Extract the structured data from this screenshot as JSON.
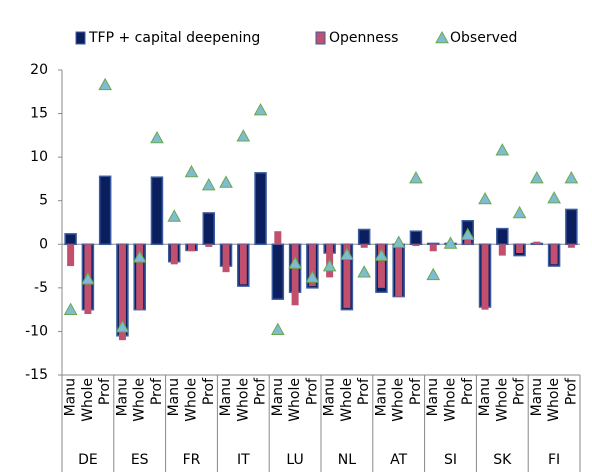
{
  "chart_data": {
    "type": "bar",
    "categories": [
      "Manu",
      "Whole",
      "Prof",
      "Manu",
      "Whole",
      "Prof",
      "Manu",
      "Whole",
      "Prof",
      "Manu",
      "Whole",
      "Prof",
      "Manu",
      "Whole",
      "Prof",
      "Manu",
      "Whole",
      "Prof",
      "Manu",
      "Whole",
      "Prof",
      "Manu",
      "Whole",
      "Prof",
      "Manu",
      "Whole",
      "Prof",
      "Manu",
      "Whole",
      "Prof"
    ],
    "groups": [
      "DE",
      "ES",
      "FR",
      "IT",
      "LU",
      "NL",
      "AT",
      "SI",
      "SK",
      "FI"
    ],
    "series": [
      {
        "name": "TFP + capital deepening",
        "color": "#0b1f5e",
        "mark": "bar",
        "values": [
          1.2,
          -7.5,
          7.8,
          -10.5,
          -7.5,
          7.7,
          -2,
          -0.7,
          3.6,
          -2.5,
          -4.8,
          8.2,
          -6.3,
          -5.5,
          -5,
          -1,
          -7.5,
          1.7,
          -5.5,
          -6,
          1.5,
          0.1,
          0.1,
          2.7,
          -7.2,
          1.8,
          -1.3,
          0.1,
          -2.5,
          4
        ]
      },
      {
        "name": "Openness",
        "color": "#c0506e",
        "mark": "bar",
        "values": [
          -2.5,
          -8,
          0,
          -11,
          -7.5,
          0,
          -2.3,
          -0.8,
          -0.3,
          -3.2,
          -4.6,
          0,
          1.5,
          -7,
          -4.8,
          -3.8,
          -7.3,
          -0.4,
          -5,
          -6,
          -0.2,
          -0.8,
          -0.4,
          0.5,
          -7.5,
          -1.3,
          -1,
          0.3,
          -2.3,
          -0.4
        ]
      },
      {
        "name": "Observed",
        "color": "#7fbcd2",
        "mark": "triangle",
        "values": [
          -7.5,
          -4,
          18.3,
          -9.5,
          -1.5,
          12.2,
          3.2,
          8.3,
          6.8,
          7.1,
          12.4,
          15.4,
          -9.8,
          -2.2,
          -3.8,
          -2.5,
          -1.2,
          -3.2,
          -1.3,
          0.2,
          7.6,
          -3.5,
          0.1,
          1.1,
          5.2,
          10.8,
          3.6,
          7.6,
          5.3,
          7.6
        ]
      }
    ],
    "ylim": [
      -15,
      20
    ],
    "yticks": [
      -15,
      -10,
      -5,
      0,
      5,
      10,
      15,
      20
    ]
  }
}
